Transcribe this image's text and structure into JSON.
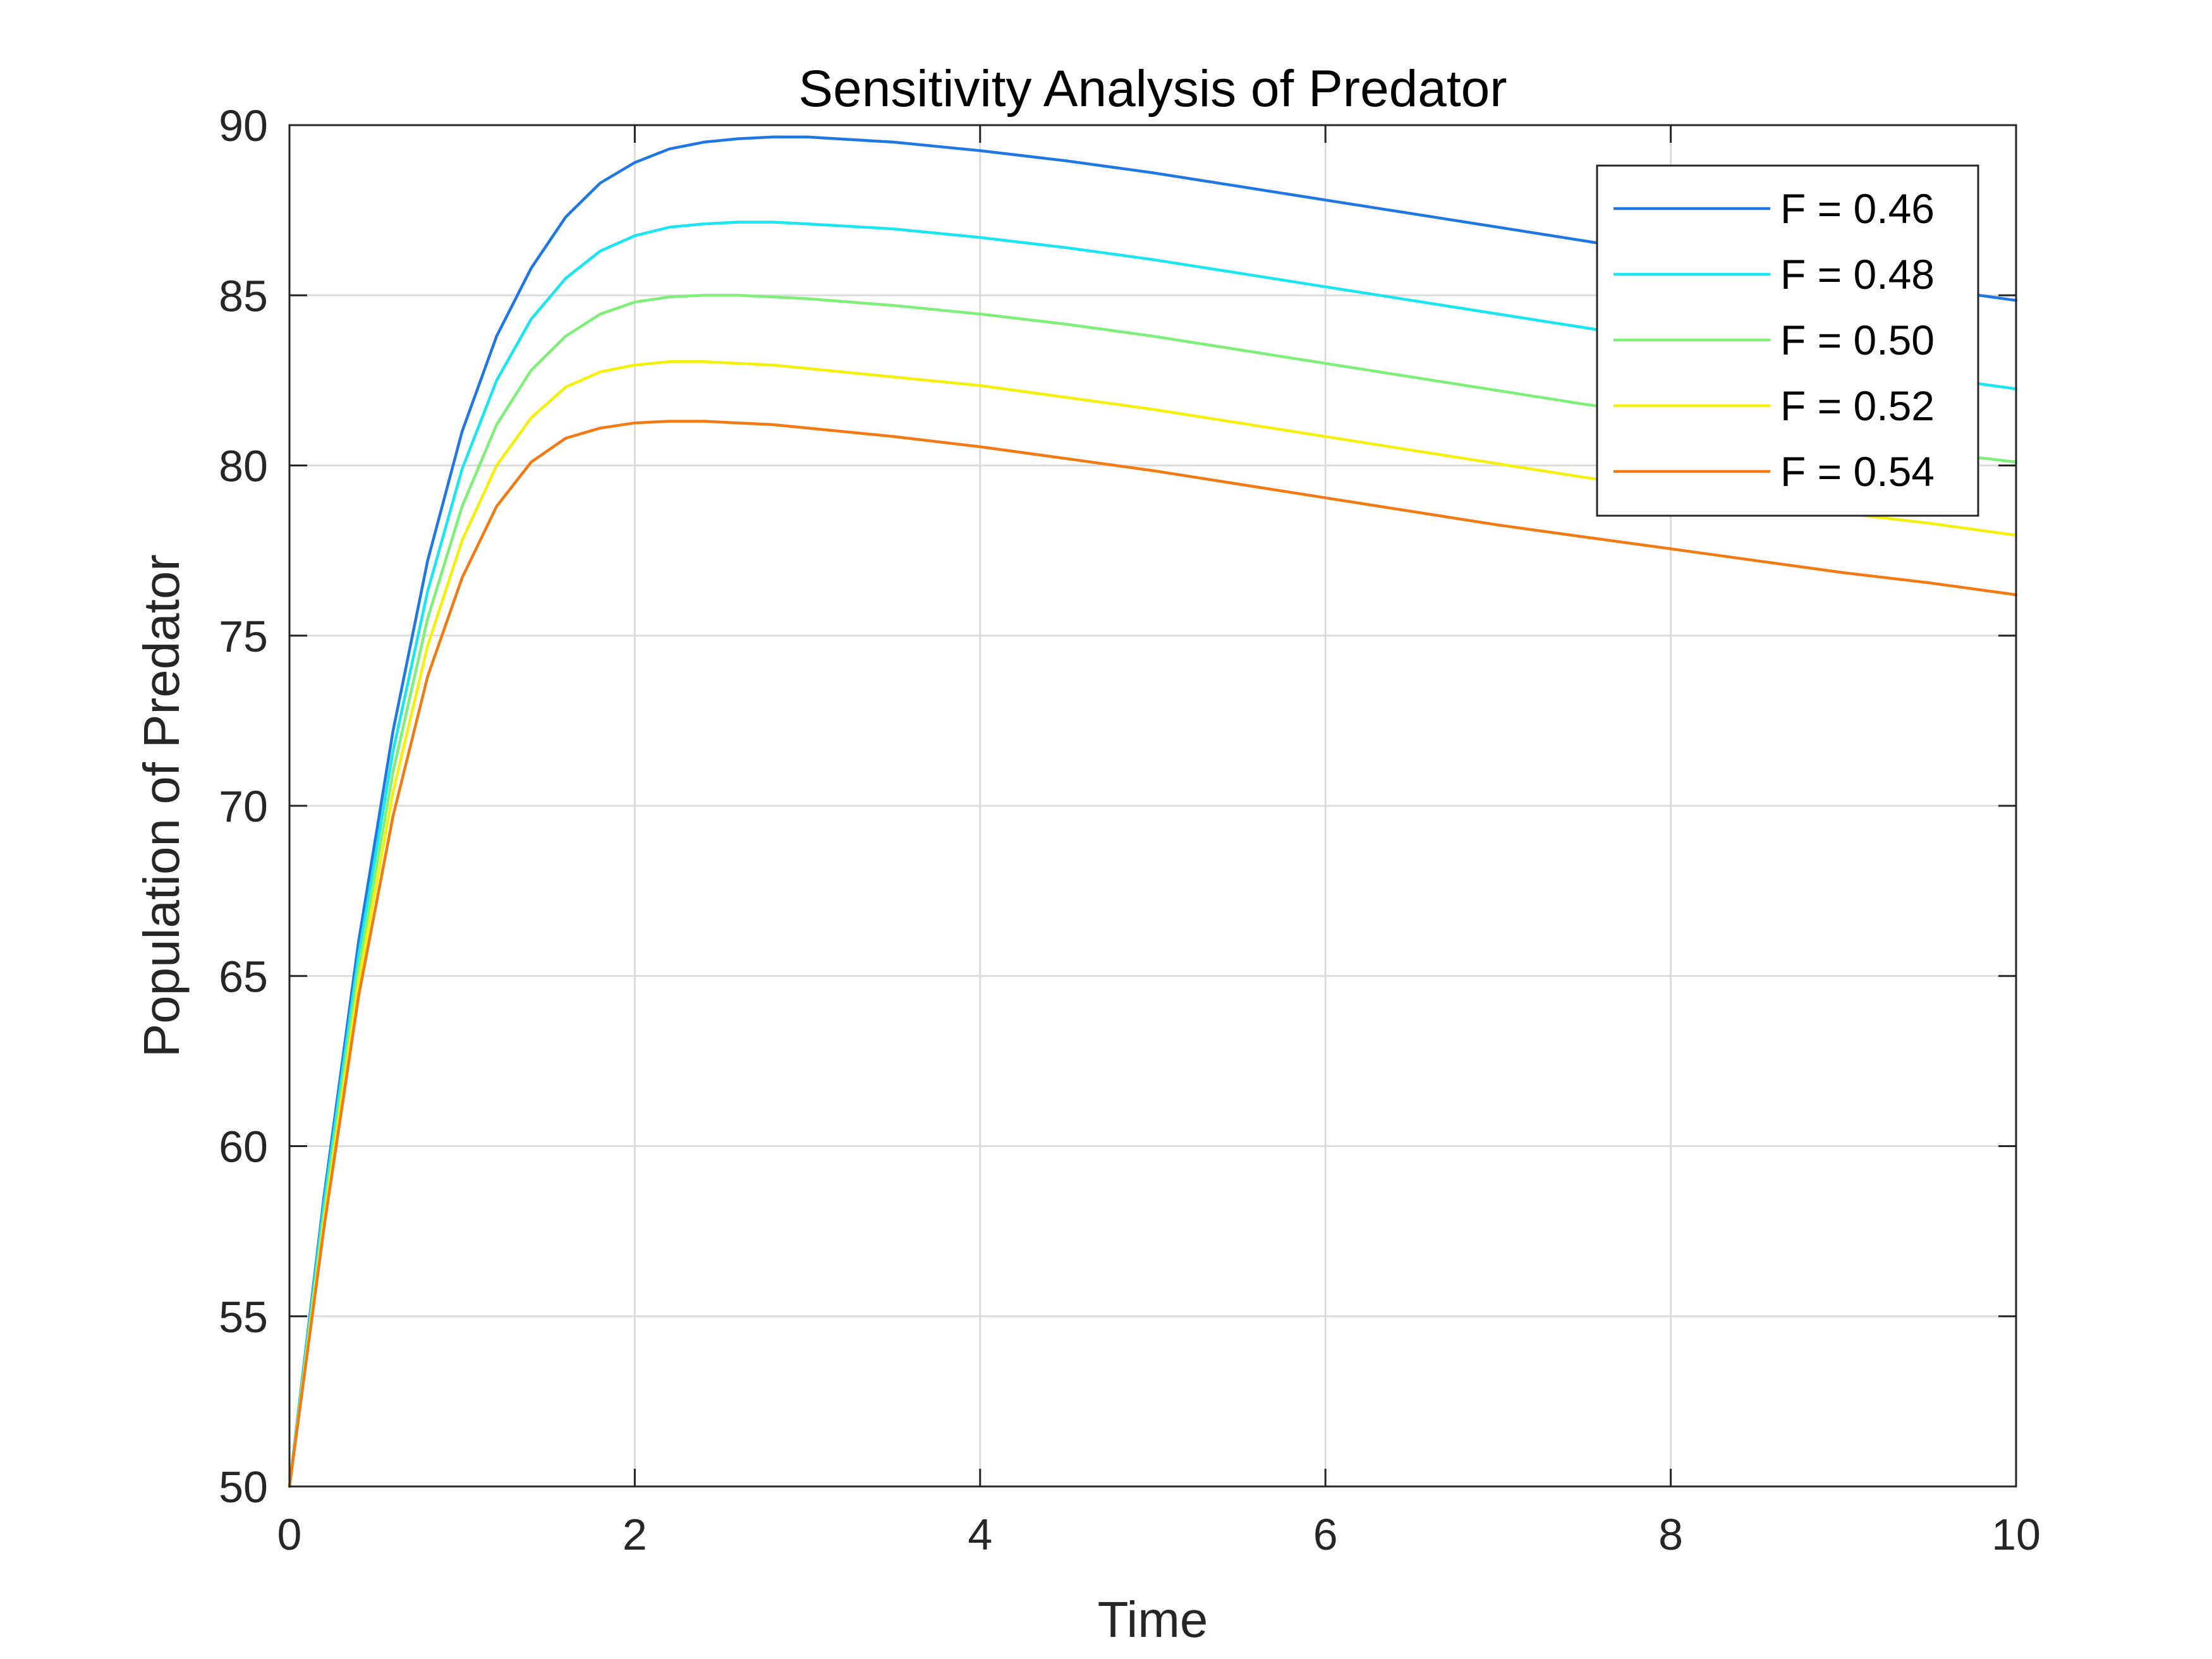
{
  "chart_data": {
    "type": "line",
    "title": "Sensitivity Analysis of Predator",
    "xlabel": "Time",
    "ylabel": "Population of Predator",
    "xlim": [
      0,
      10
    ],
    "ylim": [
      50,
      90
    ],
    "xticks": [
      0,
      2,
      4,
      6,
      8,
      10
    ],
    "yticks": [
      50,
      55,
      60,
      65,
      70,
      75,
      80,
      85,
      90
    ],
    "grid": true,
    "legend_position": "top-right",
    "x": [
      0,
      0.2,
      0.4,
      0.6,
      0.8,
      1.0,
      1.2,
      1.4,
      1.6,
      1.8,
      2.0,
      2.2,
      2.4,
      2.6,
      2.8,
      3.0,
      3.5,
      4.0,
      4.5,
      5.0,
      5.5,
      6.0,
      6.5,
      7.0,
      7.5,
      8.0,
      8.5,
      9.0,
      9.5,
      10.0
    ],
    "series": [
      {
        "name": "F = 0.46",
        "color": "#1f77e6",
        "values": [
          50,
          58.5,
          66.0,
          72.2,
          77.2,
          81.0,
          83.8,
          85.8,
          87.3,
          88.3,
          88.9,
          89.3,
          89.5,
          89.6,
          89.65,
          89.65,
          89.5,
          89.25,
          88.95,
          88.6,
          88.2,
          87.8,
          87.4,
          87.0,
          86.6,
          86.2,
          85.9,
          85.5,
          85.2,
          84.85
        ]
      },
      {
        "name": "F = 0.48",
        "color": "#19e6f0",
        "values": [
          50,
          58.3,
          65.6,
          71.6,
          76.3,
          79.9,
          82.5,
          84.3,
          85.5,
          86.3,
          86.75,
          87.0,
          87.1,
          87.15,
          87.15,
          87.1,
          86.95,
          86.7,
          86.4,
          86.05,
          85.65,
          85.25,
          84.85,
          84.45,
          84.05,
          83.65,
          83.3,
          82.95,
          82.6,
          82.25
        ]
      },
      {
        "name": "F = 0.50",
        "color": "#7ef07a",
        "values": [
          50,
          58.0,
          65.2,
          71.0,
          75.5,
          78.8,
          81.2,
          82.8,
          83.8,
          84.45,
          84.8,
          84.95,
          85.0,
          85.0,
          84.95,
          84.9,
          84.7,
          84.45,
          84.15,
          83.8,
          83.4,
          83.0,
          82.6,
          82.2,
          81.8,
          81.45,
          81.1,
          80.75,
          80.4,
          80.1
        ]
      },
      {
        "name": "F = 0.52",
        "color": "#f5f00a",
        "values": [
          50,
          57.8,
          64.8,
          70.4,
          74.7,
          77.8,
          80.0,
          81.4,
          82.3,
          82.75,
          82.95,
          83.05,
          83.05,
          83.0,
          82.95,
          82.85,
          82.6,
          82.35,
          82.0,
          81.65,
          81.25,
          80.85,
          80.45,
          80.05,
          79.65,
          79.3,
          78.95,
          78.6,
          78.3,
          77.95
        ]
      },
      {
        "name": "F = 0.54",
        "color": "#f37a13",
        "values": [
          50,
          57.6,
          64.4,
          69.7,
          73.8,
          76.7,
          78.8,
          80.1,
          80.8,
          81.1,
          81.25,
          81.3,
          81.3,
          81.25,
          81.2,
          81.1,
          80.85,
          80.55,
          80.2,
          79.85,
          79.45,
          79.05,
          78.65,
          78.25,
          77.9,
          77.55,
          77.2,
          76.85,
          76.55,
          76.2
        ]
      }
    ]
  }
}
